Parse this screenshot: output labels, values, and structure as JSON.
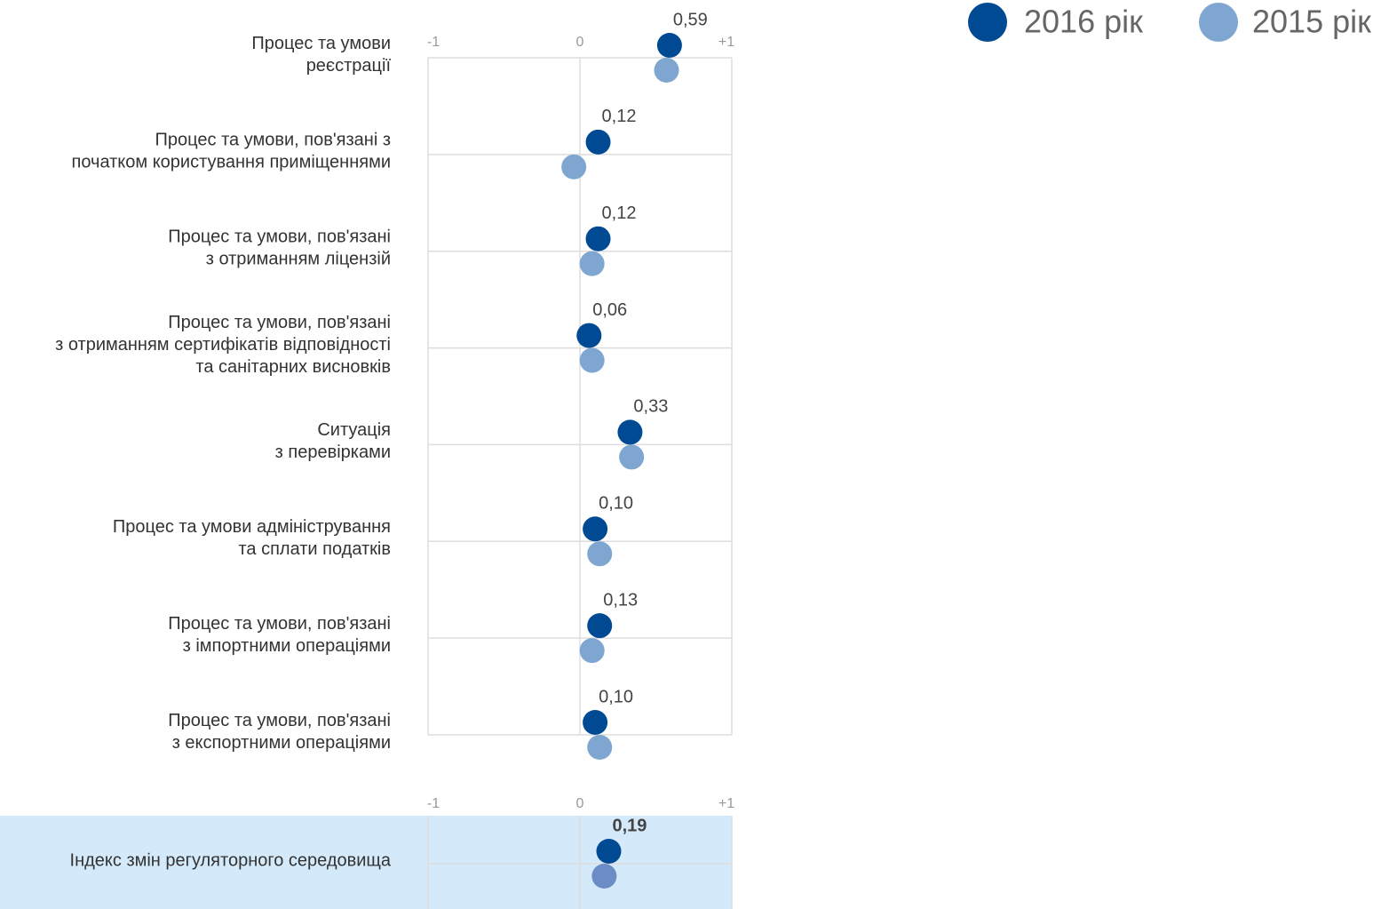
{
  "chart_data": [
    {
      "type": "dot",
      "categories": [
        [
          "Процес та умови",
          "реєстрації"
        ],
        [
          "Процес та умови, пов'язані з",
          "початком користування приміщеннями"
        ],
        [
          "Процес та умови, пов'язані",
          "з отриманням ліцензій"
        ],
        [
          "Процес та умови, пов'язані",
          "з отриманням сертифікатів відповідності",
          "та санітарних висновків"
        ],
        [
          "Ситуація",
          "з перевірками"
        ],
        [
          "Процес та умови адміністрування",
          "та сплати податків"
        ],
        [
          "Процес та умови, пов'язані",
          "з імпортними операціями"
        ],
        [
          "Процес та умови, пов'язані",
          "з експортними операціями"
        ]
      ],
      "series": [
        {
          "name": "2016 рік",
          "color": "#004a94",
          "values": [
            0.59,
            0.12,
            0.12,
            0.06,
            0.33,
            0.1,
            0.13,
            0.1
          ],
          "value_labels": [
            "0,59",
            "0,12",
            "0,12",
            "0,06",
            "0,33",
            "0,10",
            "0,13",
            "0,10"
          ]
        },
        {
          "name": "2015 рік",
          "color": "#7ea6d0",
          "values": [
            0.57,
            -0.04,
            0.08,
            0.08,
            0.34,
            0.13,
            0.08,
            0.13
          ]
        }
      ],
      "xlim": [
        -1,
        1
      ],
      "xticks": [
        -1,
        0,
        {
          "value": 1,
          "label": "+1"
        }
      ],
      "grid": true,
      "legend": "top-right"
    },
    {
      "type": "dot",
      "categories": [
        [
          "Індекс змін регуляторного середовища"
        ]
      ],
      "series": [
        {
          "color": "#004a94",
          "values": [
            0.19
          ],
          "value_labels": [
            "0,19"
          ]
        },
        {
          "color": "#6c8cc6",
          "values": [
            0.16
          ]
        }
      ],
      "xlim": [
        -1,
        1
      ],
      "xticks": [
        -1,
        0,
        {
          "value": 1,
          "label": "+1"
        }
      ],
      "grid": true,
      "highlight": "#d4eafa"
    }
  ]
}
